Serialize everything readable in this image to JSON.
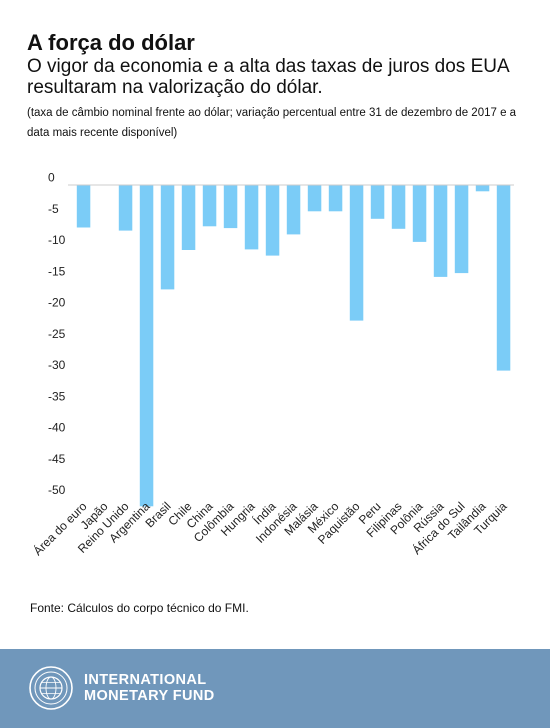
{
  "header": {
    "title": "A força do dólar",
    "subtitle": "O vigor da economia e a alta das taxas de juros dos EUA resultaram na valorização do dólar.",
    "note": "(taxa de câmbio nominal frente ao dólar; variação percentual entre 31 de dezembro de 2017 e a data mais recente disponível)"
  },
  "chart_data": {
    "type": "bar",
    "title": "",
    "xlabel": "",
    "ylabel": "",
    "categories": [
      "Área do euro",
      "Japão",
      "Reino Unido",
      "Argentina",
      "Brasil",
      "Chile",
      "China",
      "Colômbia",
      "Hungria",
      "Índia",
      "Indonésia",
      "Malásia",
      "México",
      "Paquistão",
      "Peru",
      "Filipinas",
      "Polônia",
      "Rússia",
      "África do Sul",
      "Tailândia",
      "Turquia"
    ],
    "values": [
      -6.8,
      0.0,
      -7.3,
      -51.4,
      -16.7,
      -10.4,
      -6.6,
      -6.9,
      -10.3,
      -11.3,
      -7.9,
      -4.2,
      -4.2,
      -21.7,
      -5.4,
      -7.0,
      -9.1,
      -14.7,
      -14.1,
      -1.0,
      -29.7
    ],
    "yticks": [
      "0",
      "-5",
      "-10",
      "-15",
      "-20",
      "-25",
      "-30",
      "-35",
      "-40",
      "-45",
      "-50"
    ],
    "ylim": [
      -52,
      1.5
    ],
    "grid": false,
    "legend": "none",
    "bar_color": "#7bccf7",
    "axis_color": "#cccccc"
  },
  "source": "Fonte: Cálculos do corpo técnico do FMI.",
  "footer": {
    "logo_line1": "INTERNATIONAL",
    "logo_line2": "MONETARY FUND",
    "background": "#7097bb"
  }
}
